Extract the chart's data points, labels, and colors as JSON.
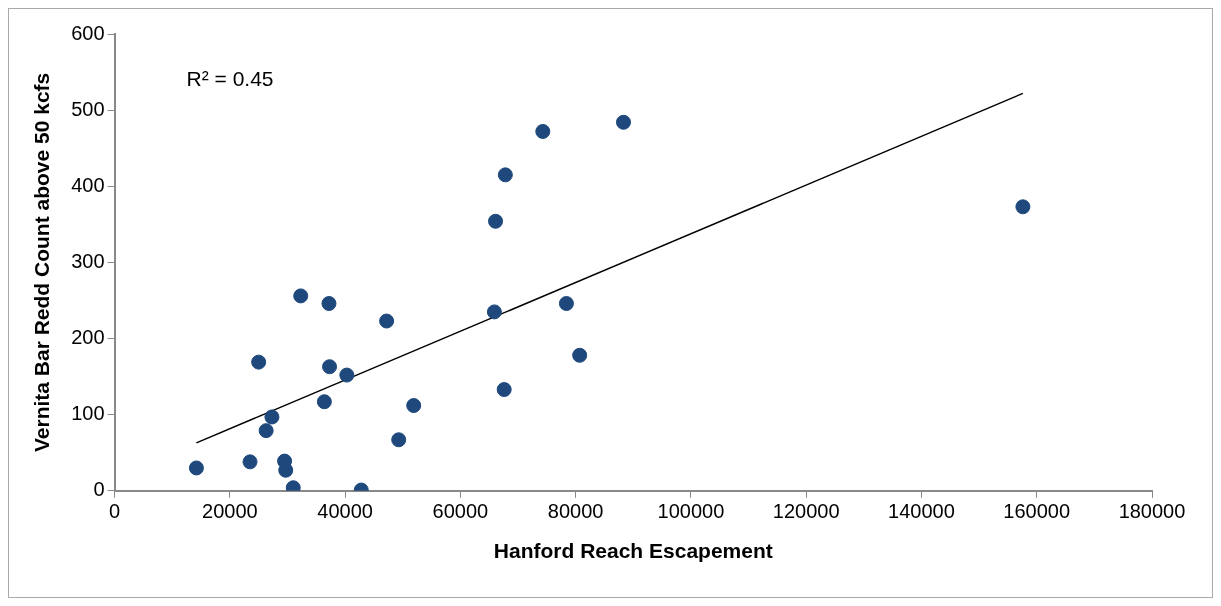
{
  "chart_data": {
    "type": "scatter",
    "xlabel": "Hanford Reach Escapement",
    "ylabel": "Vernita Bar Redd Count above 50 kcfs",
    "annotations": [
      "R² = 0.45"
    ],
    "xlim": [
      0,
      180000
    ],
    "xticks": [
      0,
      20000,
      40000,
      60000,
      80000,
      100000,
      120000,
      140000,
      160000,
      180000
    ],
    "ylim": [
      0,
      600
    ],
    "yticks": [
      0,
      100,
      200,
      300,
      400,
      500,
      600
    ],
    "grid": false,
    "legend": false,
    "marker": "circle",
    "series": [
      {
        "color": "#1f497d",
        "x": [
          14200,
          23500,
          25000,
          26300,
          27300,
          29500,
          29700,
          31000,
          32300,
          36400,
          37200,
          37300,
          40300,
          42800,
          47200,
          49300,
          51900,
          65900,
          66100,
          67600,
          67800,
          74300,
          78400,
          80700,
          88300,
          157600
        ],
        "values": [
          30,
          38,
          169,
          79,
          97,
          39,
          27,
          4,
          256,
          117,
          246,
          163,
          152,
          1,
          223,
          67,
          112,
          235,
          354,
          133,
          415,
          472,
          246,
          178,
          484,
          373
        ]
      },
      {
        "type": "line",
        "color": "#000000",
        "marker": "none",
        "x": [
          14200,
          157600
        ],
        "values": [
          63,
          522
        ]
      }
    ]
  }
}
